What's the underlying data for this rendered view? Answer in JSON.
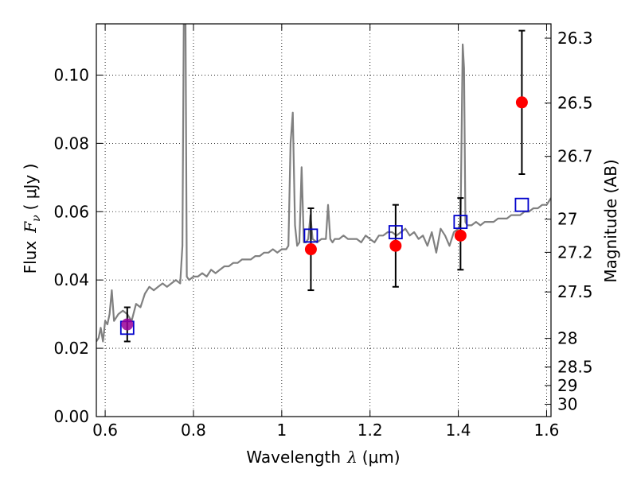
{
  "chart_data": {
    "type": "scatter",
    "xlabel_text": "Wavelength",
    "xlabel_symbol": "λ",
    "xlabel_unit": "(μm)",
    "ylabel_text": "Flux",
    "ylabel_symbol": "F",
    "ylabel_sub": "ν",
    "ylabel_unit": "( μJy )",
    "y2label": "Magnitude (AB)",
    "xlim": [
      0.58,
      1.61
    ],
    "ylim": [
      0.0,
      0.115
    ],
    "grid": true,
    "x_ticks": [
      0.6,
      0.8,
      1.0,
      1.2,
      1.4,
      1.6
    ],
    "x_tick_labels": [
      "0.6",
      "0.8",
      "1",
      "1.2",
      "1.4",
      "1.6"
    ],
    "y_ticks": [
      0.0,
      0.02,
      0.04,
      0.06,
      0.08,
      0.1
    ],
    "y_tick_labels": [
      "0.00",
      "0.02",
      "0.04",
      "0.06",
      "0.08",
      "0.10"
    ],
    "y2_ticks": [
      {
        "label": "26.3",
        "flux": 0.1108
      },
      {
        "label": "26.5",
        "flux": 0.0918
      },
      {
        "label": "26.7",
        "flux": 0.0762
      },
      {
        "label": "27",
        "flux": 0.0578
      },
      {
        "label": "27.2",
        "flux": 0.0481
      },
      {
        "label": "27.5",
        "flux": 0.0365
      },
      {
        "label": "28",
        "flux": 0.0229
      },
      {
        "label": "28.5",
        "flux": 0.0145
      },
      {
        "label": "29",
        "flux": 0.0091
      },
      {
        "label": "30",
        "flux": 0.0036
      }
    ],
    "model_spectrum": {
      "color": "#808080",
      "x": [
        0.58,
        0.585,
        0.59,
        0.595,
        0.6,
        0.605,
        0.61,
        0.615,
        0.62,
        0.63,
        0.64,
        0.65,
        0.66,
        0.67,
        0.68,
        0.69,
        0.7,
        0.71,
        0.72,
        0.73,
        0.74,
        0.75,
        0.76,
        0.77,
        0.775,
        0.778,
        0.78,
        0.782,
        0.785,
        0.79,
        0.8,
        0.81,
        0.82,
        0.83,
        0.84,
        0.85,
        0.86,
        0.87,
        0.88,
        0.89,
        0.9,
        0.91,
        0.92,
        0.93,
        0.94,
        0.95,
        0.96,
        0.97,
        0.98,
        0.99,
        1.0,
        1.01,
        1.015,
        1.02,
        1.025,
        1.03,
        1.035,
        1.04,
        1.045,
        1.05,
        1.055,
        1.06,
        1.065,
        1.07,
        1.08,
        1.09,
        1.1,
        1.105,
        1.11,
        1.115,
        1.12,
        1.13,
        1.14,
        1.15,
        1.16,
        1.17,
        1.18,
        1.19,
        1.2,
        1.21,
        1.22,
        1.23,
        1.24,
        1.25,
        1.26,
        1.27,
        1.28,
        1.29,
        1.3,
        1.31,
        1.32,
        1.33,
        1.34,
        1.35,
        1.36,
        1.37,
        1.38,
        1.39,
        1.4,
        1.405,
        1.41,
        1.413,
        1.416,
        1.42,
        1.43,
        1.44,
        1.45,
        1.46,
        1.47,
        1.48,
        1.49,
        1.5,
        1.51,
        1.52,
        1.53,
        1.54,
        1.55,
        1.56,
        1.57,
        1.58,
        1.59,
        1.6,
        1.605,
        1.61
      ],
      "y": [
        0.022,
        0.023,
        0.026,
        0.022,
        0.028,
        0.027,
        0.03,
        0.037,
        0.028,
        0.03,
        0.031,
        0.03,
        0.028,
        0.033,
        0.032,
        0.036,
        0.038,
        0.037,
        0.038,
        0.039,
        0.038,
        0.039,
        0.04,
        0.039,
        0.05,
        0.115,
        0.115,
        0.115,
        0.041,
        0.04,
        0.041,
        0.041,
        0.042,
        0.041,
        0.043,
        0.042,
        0.043,
        0.044,
        0.044,
        0.045,
        0.045,
        0.046,
        0.046,
        0.046,
        0.047,
        0.047,
        0.048,
        0.048,
        0.049,
        0.048,
        0.049,
        0.049,
        0.05,
        0.08,
        0.089,
        0.056,
        0.05,
        0.051,
        0.073,
        0.051,
        0.051,
        0.052,
        0.059,
        0.052,
        0.051,
        0.052,
        0.052,
        0.062,
        0.052,
        0.051,
        0.052,
        0.052,
        0.053,
        0.052,
        0.052,
        0.052,
        0.051,
        0.053,
        0.052,
        0.051,
        0.053,
        0.053,
        0.054,
        0.054,
        0.053,
        0.054,
        0.055,
        0.053,
        0.054,
        0.052,
        0.053,
        0.05,
        0.054,
        0.048,
        0.055,
        0.053,
        0.05,
        0.054,
        0.055,
        0.057,
        0.109,
        0.102,
        0.057,
        0.056,
        0.056,
        0.057,
        0.056,
        0.057,
        0.057,
        0.057,
        0.058,
        0.058,
        0.058,
        0.059,
        0.059,
        0.059,
        0.06,
        0.06,
        0.061,
        0.061,
        0.062,
        0.062,
        0.063,
        0.064
      ]
    },
    "model_photometry": {
      "color": "#0000cc",
      "marker": "open-square",
      "x": [
        0.65,
        1.066,
        1.258,
        1.405,
        1.544
      ],
      "y": [
        0.026,
        0.053,
        0.054,
        0.057,
        0.062
      ]
    },
    "observed_photometry": {
      "color": "#ff0000",
      "marker": "filled-circle",
      "x": [
        0.65,
        1.066,
        1.258,
        1.405,
        1.544
      ],
      "y": [
        0.027,
        0.049,
        0.05,
        0.053,
        0.092
      ],
      "err_low": [
        0.022,
        0.037,
        0.038,
        0.043,
        0.071
      ],
      "err_high": [
        0.032,
        0.061,
        0.062,
        0.064,
        0.113
      ],
      "first_point_color": "#990099"
    }
  }
}
